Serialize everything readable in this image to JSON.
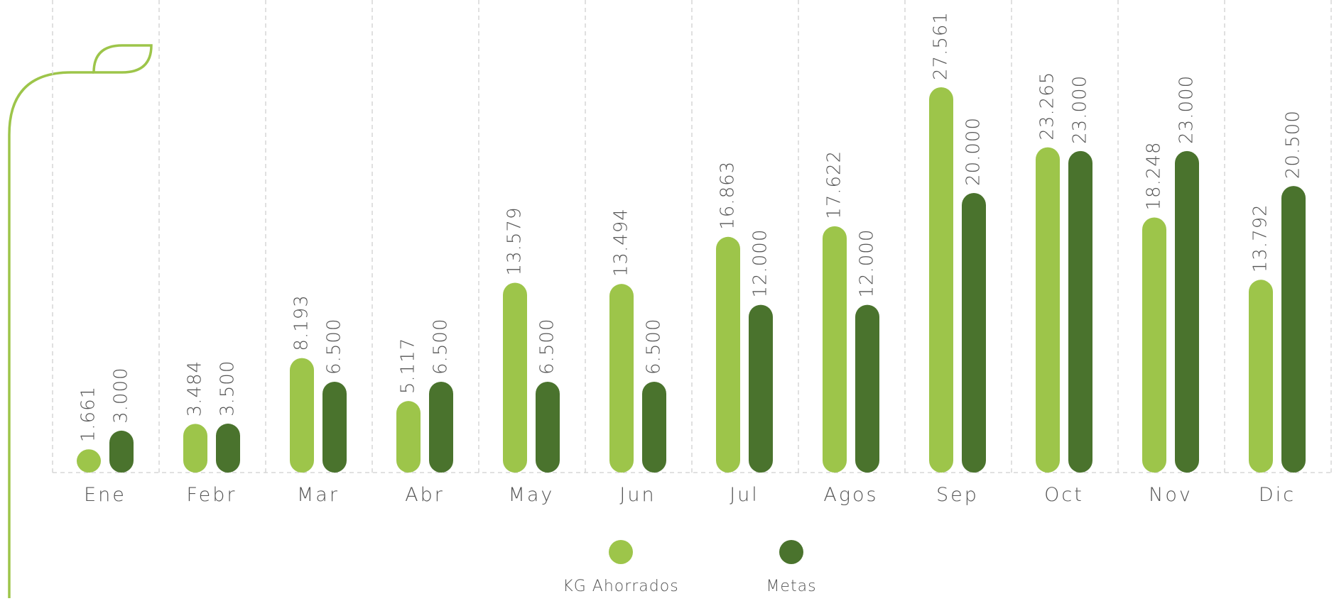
{
  "chart_data": {
    "type": "bar",
    "categories": [
      "Ene",
      "Febr",
      "Mar",
      "Abr",
      "May",
      "Jun",
      "Jul",
      "Agos",
      "Sep",
      "Oct",
      "Nov",
      "Dic"
    ],
    "series": [
      {
        "name": "KG Ahorrados",
        "color": "#9dc54a",
        "values": [
          1661,
          3484,
          8193,
          5117,
          13579,
          13494,
          16863,
          17622,
          27561,
          23265,
          18248,
          13792
        ],
        "value_labels": [
          "1.661",
          "3.484",
          "8.193",
          "5.117",
          "13.579",
          "13.494",
          "16.863",
          "17.622",
          "27.561",
          "23.265",
          "18.248",
          "13.792"
        ]
      },
      {
        "name": "Metas",
        "color": "#4a732d",
        "values": [
          3000,
          3500,
          6500,
          6500,
          6500,
          6500,
          12000,
          12000,
          20000,
          23000,
          23000,
          20500
        ],
        "value_labels": [
          "3.000",
          "3.500",
          "6.500",
          "6.500",
          "6.500",
          "6.500",
          "12.000",
          "12.000",
          "20.000",
          "23.000",
          "23.000",
          "20.500"
        ]
      }
    ]
  }
}
